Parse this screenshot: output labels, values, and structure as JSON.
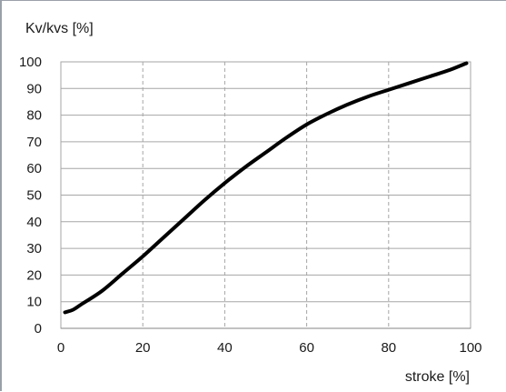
{
  "chart_data": {
    "type": "line",
    "title": "",
    "ylabel": "Kv/kvs [%]",
    "xlabel": "stroke [%]",
    "xlim": [
      0,
      100
    ],
    "ylim": [
      0,
      100
    ],
    "xticks": [
      0,
      20,
      40,
      60,
      80,
      100
    ],
    "yticks": [
      0,
      10,
      20,
      30,
      40,
      50,
      60,
      70,
      80,
      90,
      100
    ],
    "grid": {
      "horizontal": "solid",
      "vertical": "dashed"
    },
    "series": [
      {
        "color": "#000000",
        "x": [
          1,
          3,
          5,
          10,
          15,
          20,
          25,
          30,
          35,
          40,
          45,
          50,
          55,
          60,
          65,
          70,
          75,
          80,
          85,
          90,
          95,
          99
        ],
        "y": [
          6,
          7,
          9,
          14,
          20.5,
          27,
          34,
          41,
          48,
          54.5,
          60.5,
          66,
          71.5,
          76.5,
          80.5,
          84,
          87,
          89.5,
          92,
          94.5,
          97,
          99.5
        ]
      }
    ]
  }
}
